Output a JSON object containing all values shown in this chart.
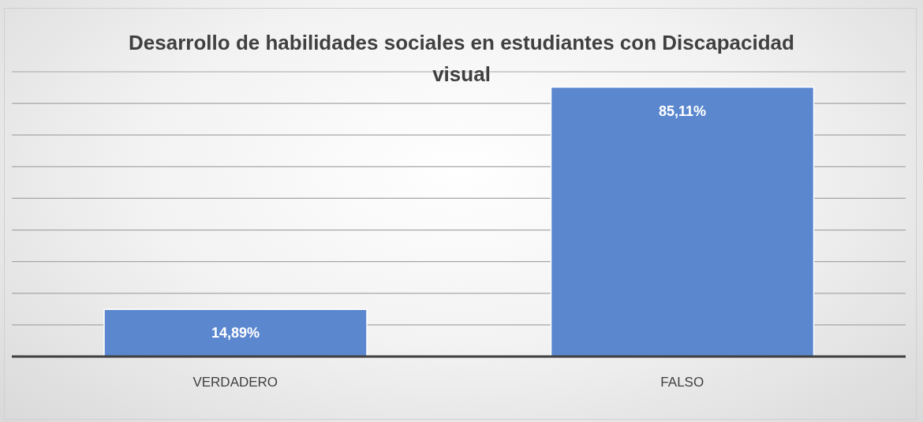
{
  "chart_data": {
    "type": "bar",
    "title": "Desarrollo de habilidades sociales en estudiantes con Discapacidad visual",
    "categories": [
      "VERDADERO",
      "FALSO"
    ],
    "values": [
      14.89,
      85.11
    ],
    "value_labels": [
      "14,89%",
      "85,11%"
    ],
    "color": "#5b87cf",
    "ylim": [
      0,
      90
    ],
    "yticks": [
      {
        "value": 0,
        "label": null
      },
      {
        "value": 10,
        "label": null
      },
      {
        "value": 20,
        "label": null
      },
      {
        "value": 30,
        "label": null
      },
      {
        "value": 40,
        "label": null
      },
      {
        "value": 50,
        "label": null
      },
      {
        "value": 60,
        "label": null
      },
      {
        "value": 70,
        "label": null
      },
      {
        "value": 80,
        "label": null
      },
      {
        "value": 90,
        "label": null
      }
    ],
    "grid": "y",
    "tick_labels": "x"
  }
}
